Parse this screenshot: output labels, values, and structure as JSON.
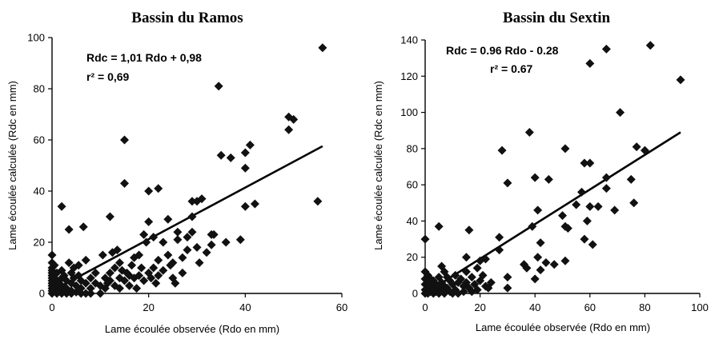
{
  "chart_data": [
    {
      "type": "scatter",
      "title": "Bassin du Ramos",
      "xlabel": "Lame écoulée observée (Rdo en mm)",
      "ylabel": "Lame écoulée calculée (Rdc en mm)",
      "xlim": [
        0,
        60
      ],
      "ylim": [
        0,
        100
      ],
      "xticks": [
        "0",
        "20",
        "40",
        "60"
      ],
      "yticks": [
        "0",
        "20",
        "40",
        "60",
        "80",
        "100"
      ],
      "xtick_values": [
        0,
        20,
        40,
        60
      ],
      "ytick_values": [
        0,
        20,
        40,
        60,
        80,
        100
      ],
      "equation": "Rdc = 1,01 Rdo + 0,98",
      "r2_label": "r² = 0,69",
      "trendline": {
        "slope": 1.01,
        "intercept": 0.98,
        "x_range": [
          0,
          56
        ]
      },
      "marker_color": "#111111",
      "points": [
        [
          0,
          15
        ],
        [
          0,
          12
        ],
        [
          0,
          10
        ],
        [
          0,
          9
        ],
        [
          0,
          8
        ],
        [
          0,
          7
        ],
        [
          0,
          6
        ],
        [
          0,
          5
        ],
        [
          0,
          4
        ],
        [
          0,
          3
        ],
        [
          0,
          2
        ],
        [
          0,
          1
        ],
        [
          0,
          0
        ],
        [
          0.5,
          11
        ],
        [
          0.5,
          6
        ],
        [
          0.5,
          3
        ],
        [
          0.5,
          1
        ],
        [
          1,
          8
        ],
        [
          1,
          5
        ],
        [
          1,
          2
        ],
        [
          1,
          0
        ],
        [
          1.5,
          4
        ],
        [
          1.5,
          1
        ],
        [
          2,
          34
        ],
        [
          2,
          9
        ],
        [
          2,
          6
        ],
        [
          2,
          3
        ],
        [
          2,
          1
        ],
        [
          2,
          0
        ],
        [
          2.5,
          7
        ],
        [
          2.5,
          2
        ],
        [
          3,
          5
        ],
        [
          3,
          2
        ],
        [
          3,
          0
        ],
        [
          3.5,
          25
        ],
        [
          3.5,
          12
        ],
        [
          4,
          8
        ],
        [
          4,
          4
        ],
        [
          4,
          1
        ],
        [
          4,
          0
        ],
        [
          4.5,
          10
        ],
        [
          4.5,
          6
        ],
        [
          5,
          3
        ],
        [
          5,
          0.5
        ],
        [
          5.5,
          11
        ],
        [
          5.5,
          7
        ],
        [
          6,
          5
        ],
        [
          6,
          2
        ],
        [
          6,
          0
        ],
        [
          6.5,
          26
        ],
        [
          7,
          13
        ],
        [
          7,
          4
        ],
        [
          7,
          0
        ],
        [
          8,
          6
        ],
        [
          8,
          2
        ],
        [
          8,
          0
        ],
        [
          9,
          8
        ],
        [
          9,
          4
        ],
        [
          10,
          3
        ],
        [
          10,
          0
        ],
        [
          10.5,
          15
        ],
        [
          11,
          6
        ],
        [
          11,
          2
        ],
        [
          11.5,
          4
        ],
        [
          12,
          30
        ],
        [
          12,
          8
        ],
        [
          12,
          5
        ],
        [
          12.5,
          16
        ],
        [
          13,
          3
        ],
        [
          13,
          10
        ],
        [
          13.5,
          17
        ],
        [
          14,
          12
        ],
        [
          14,
          6
        ],
        [
          14,
          2
        ],
        [
          14.5,
          9
        ],
        [
          15,
          60
        ],
        [
          15,
          5
        ],
        [
          15,
          43
        ],
        [
          15.5,
          8
        ],
        [
          16,
          7
        ],
        [
          16,
          3
        ],
        [
          16.5,
          11
        ],
        [
          17,
          14
        ],
        [
          17,
          6
        ],
        [
          17.5,
          2
        ],
        [
          18,
          15
        ],
        [
          18,
          7
        ],
        [
          18.5,
          10
        ],
        [
          19,
          5
        ],
        [
          19,
          23
        ],
        [
          19.5,
          20
        ],
        [
          20,
          40
        ],
        [
          20,
          28
        ],
        [
          20,
          8
        ],
        [
          20.5,
          6
        ],
        [
          21,
          10
        ],
        [
          21,
          22
        ],
        [
          21.5,
          4
        ],
        [
          22,
          41
        ],
        [
          22,
          13
        ],
        [
          22,
          7
        ],
        [
          23,
          20
        ],
        [
          23,
          9
        ],
        [
          24,
          29
        ],
        [
          24,
          15
        ],
        [
          24.5,
          11
        ],
        [
          25,
          6
        ],
        [
          25,
          12
        ],
        [
          25.5,
          4
        ],
        [
          26,
          24
        ],
        [
          26,
          21
        ],
        [
          27,
          14
        ],
        [
          27,
          8
        ],
        [
          28,
          22
        ],
        [
          28,
          17
        ],
        [
          29,
          36
        ],
        [
          29,
          24
        ],
        [
          29,
          30
        ],
        [
          30,
          36
        ],
        [
          30,
          18
        ],
        [
          30.5,
          12
        ],
        [
          31,
          37
        ],
        [
          32,
          16
        ],
        [
          33,
          23
        ],
        [
          33,
          19
        ],
        [
          33.5,
          23
        ],
        [
          34.5,
          81
        ],
        [
          35,
          54
        ],
        [
          36,
          20
        ],
        [
          37,
          53
        ],
        [
          39,
          21
        ],
        [
          40,
          34
        ],
        [
          40,
          49
        ],
        [
          40,
          55
        ],
        [
          41,
          58
        ],
        [
          42,
          35
        ],
        [
          49,
          69
        ],
        [
          49,
          64
        ],
        [
          50,
          68
        ],
        [
          55,
          36
        ],
        [
          56,
          96
        ]
      ]
    },
    {
      "type": "scatter",
      "title": "Bassin du Sextin",
      "xlabel": "Lame écoulée observée (Rdo en mm)",
      "ylabel": "Lame écoulée calculée (Rdc en mm)",
      "xlim": [
        0,
        100
      ],
      "ylim": [
        0,
        140
      ],
      "xticks": [
        "0",
        "20",
        "40",
        "60",
        "80",
        "100"
      ],
      "yticks": [
        "0",
        "20",
        "40",
        "60",
        "80",
        "100",
        "120",
        "140"
      ],
      "xtick_values": [
        0,
        20,
        40,
        60,
        80,
        100
      ],
      "ytick_values": [
        0,
        20,
        40,
        60,
        80,
        100,
        120,
        140
      ],
      "equation": "Rdc = 0.96 Rdo - 0.28",
      "r2_label": "r² = 0.67",
      "trendline": {
        "slope": 0.96,
        "intercept": -0.28,
        "x_range": [
          0,
          93
        ]
      },
      "marker_color": "#111111",
      "points": [
        [
          0,
          30
        ],
        [
          0,
          12
        ],
        [
          0,
          8
        ],
        [
          0,
          5
        ],
        [
          0,
          2
        ],
        [
          0,
          0
        ],
        [
          1,
          10
        ],
        [
          1,
          6
        ],
        [
          1,
          3
        ],
        [
          1,
          0
        ],
        [
          2,
          8
        ],
        [
          2,
          4
        ],
        [
          2,
          1
        ],
        [
          3,
          7
        ],
        [
          3,
          2
        ],
        [
          3,
          0
        ],
        [
          4,
          5
        ],
        [
          4,
          1
        ],
        [
          5,
          37
        ],
        [
          5,
          9
        ],
        [
          5,
          3
        ],
        [
          5,
          0
        ],
        [
          6,
          15
        ],
        [
          6,
          6
        ],
        [
          6,
          2
        ],
        [
          7,
          12
        ],
        [
          7,
          4
        ],
        [
          7,
          0
        ],
        [
          8,
          9
        ],
        [
          8,
          3
        ],
        [
          9,
          7
        ],
        [
          9,
          1
        ],
        [
          10,
          5
        ],
        [
          10,
          0
        ],
        [
          11,
          10
        ],
        [
          11,
          2
        ],
        [
          12,
          6
        ],
        [
          12,
          0
        ],
        [
          13,
          8
        ],
        [
          14,
          4
        ],
        [
          14,
          1
        ],
        [
          15,
          20
        ],
        [
          15,
          12
        ],
        [
          15,
          6
        ],
        [
          16,
          35
        ],
        [
          16,
          3
        ],
        [
          17,
          9
        ],
        [
          17,
          1
        ],
        [
          18,
          5
        ],
        [
          19,
          14
        ],
        [
          19,
          2
        ],
        [
          20,
          18
        ],
        [
          20,
          7
        ],
        [
          21,
          10
        ],
        [
          22,
          19
        ],
        [
          22,
          4
        ],
        [
          23,
          3
        ],
        [
          24,
          6
        ],
        [
          27,
          31
        ],
        [
          27,
          24
        ],
        [
          28,
          79
        ],
        [
          30,
          61
        ],
        [
          30,
          9
        ],
        [
          30,
          3
        ],
        [
          36,
          16
        ],
        [
          37,
          14
        ],
        [
          38,
          89
        ],
        [
          39,
          37
        ],
        [
          40,
          64
        ],
        [
          40,
          8
        ],
        [
          41,
          46
        ],
        [
          41,
          20
        ],
        [
          42,
          28
        ],
        [
          42,
          13
        ],
        [
          44,
          17
        ],
        [
          45,
          63
        ],
        [
          47,
          16
        ],
        [
          50,
          43
        ],
        [
          51,
          80
        ],
        [
          51,
          37
        ],
        [
          51,
          18
        ],
        [
          52,
          36
        ],
        [
          55,
          49
        ],
        [
          57,
          56
        ],
        [
          58,
          72
        ],
        [
          58,
          30
        ],
        [
          59,
          40
        ],
        [
          60,
          72
        ],
        [
          60,
          127
        ],
        [
          60,
          48
        ],
        [
          61,
          27
        ],
        [
          63,
          48
        ],
        [
          66,
          135
        ],
        [
          66,
          58
        ],
        [
          66,
          64
        ],
        [
          69,
          46
        ],
        [
          71,
          100
        ],
        [
          75,
          63
        ],
        [
          76,
          50
        ],
        [
          77,
          81
        ],
        [
          80,
          79
        ],
        [
          82,
          137
        ],
        [
          93,
          118
        ]
      ]
    }
  ]
}
